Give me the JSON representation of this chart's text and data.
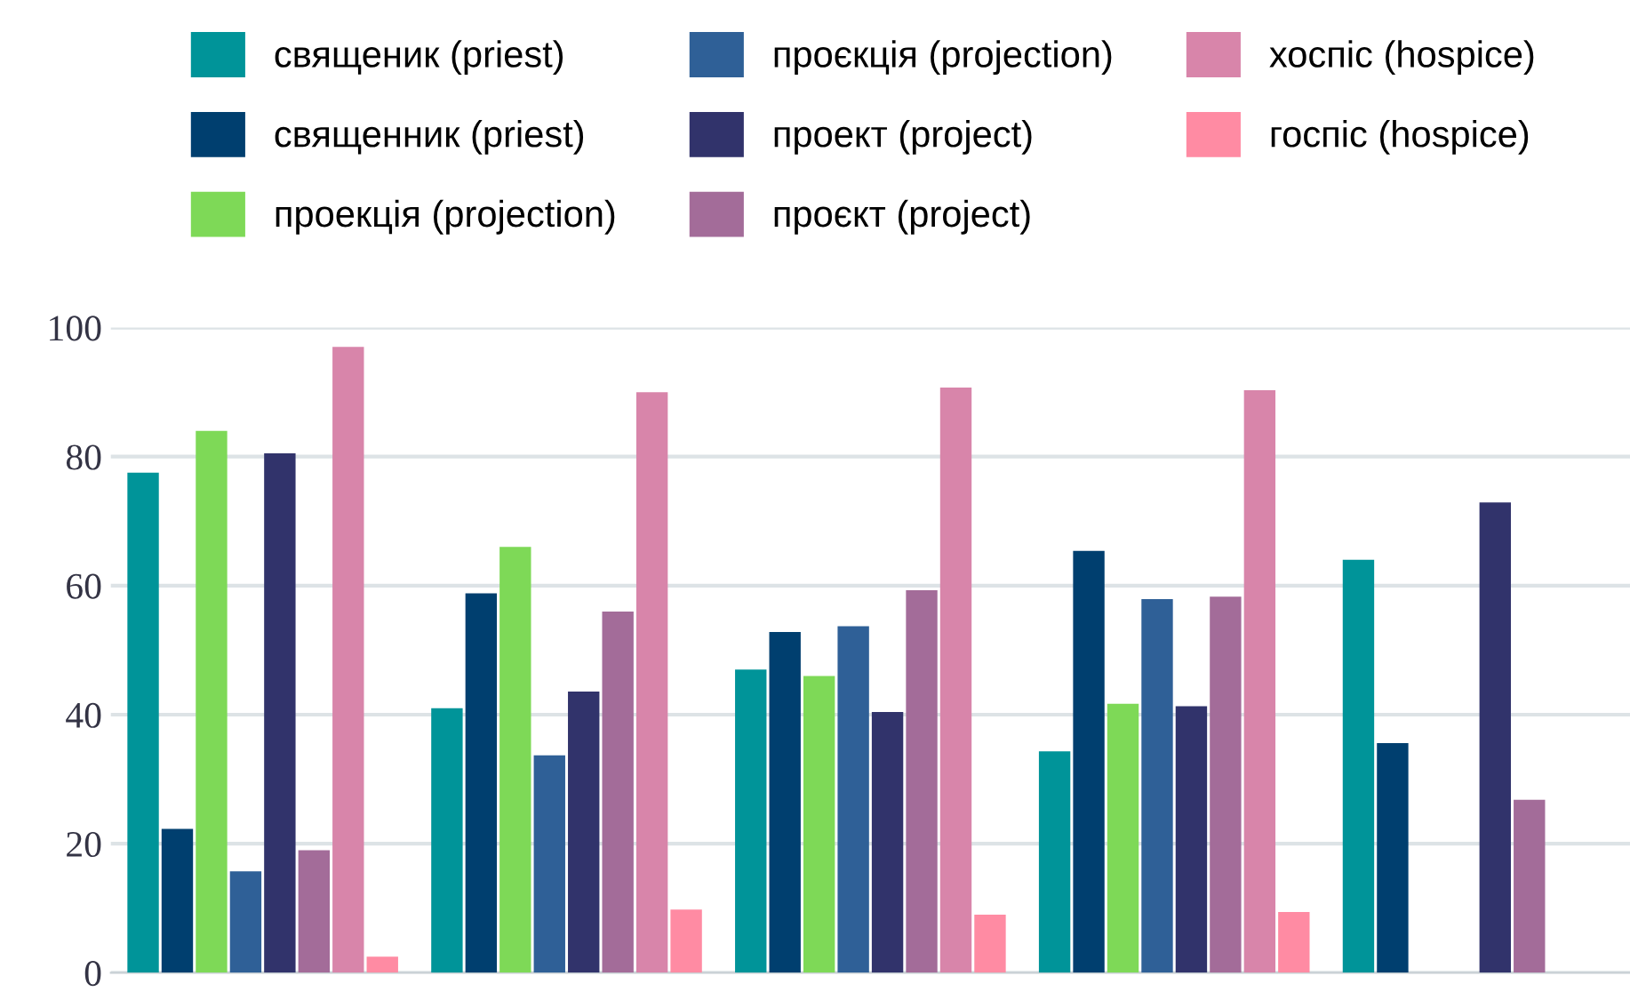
{
  "chart_data": {
    "type": "bar",
    "categories": [
      null,
      null,
      null,
      null,
      null
    ],
    "series": [
      {
        "name": "священик (priest)",
        "color": "#009499",
        "values": [
          77.5,
          41,
          47,
          34.3,
          64
        ]
      },
      {
        "name": "священник (priest)",
        "color": "#003f6f",
        "values": [
          22.3,
          58.8,
          52.8,
          65.4,
          35.6
        ]
      },
      {
        "name": "проекція (projection)",
        "color": "#7ed957",
        "values": [
          84,
          66,
          46,
          41.7,
          null
        ]
      },
      {
        "name": "проєкція (projection)",
        "color": "#2f6097",
        "values": [
          15.7,
          33.7,
          53.7,
          57.9,
          null
        ]
      },
      {
        "name": "проект (project)",
        "color": "#31336b",
        "values": [
          80.5,
          43.6,
          40.4,
          41.3,
          72.9
        ]
      },
      {
        "name": "проєкт (project)",
        "color": "#a36c99",
        "values": [
          19,
          56,
          59.3,
          58.3,
          26.8
        ]
      },
      {
        "name": "хоспіс (hospice)",
        "color": "#d885aa",
        "values": [
          97,
          90,
          90.7,
          90.3,
          null
        ]
      },
      {
        "name": "госпіс (hospice)",
        "color": "#ff8ba3",
        "values": [
          2.5,
          9.8,
          9,
          9.4,
          null
        ]
      }
    ],
    "ylim": [
      0,
      100
    ],
    "yticks": [
      0,
      20,
      40,
      60,
      80,
      100
    ],
    "grid": "y",
    "legend": "top"
  }
}
